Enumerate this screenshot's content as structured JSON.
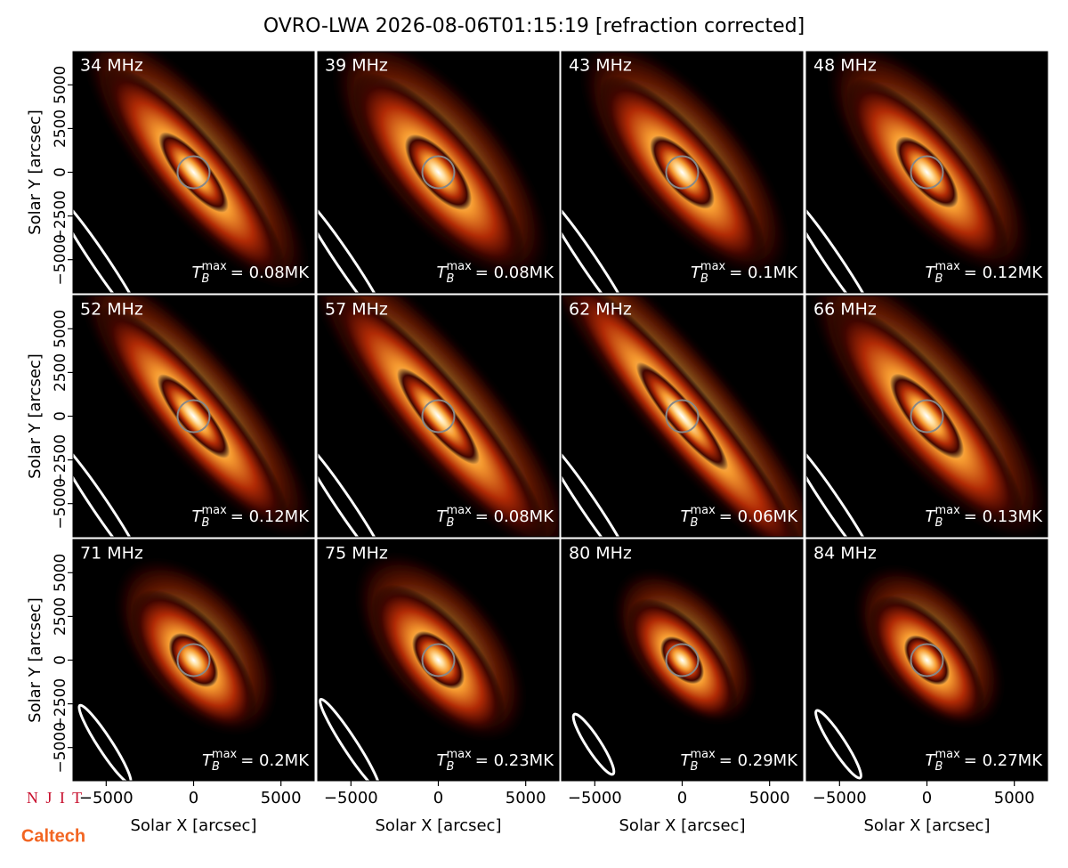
{
  "figure": {
    "title": "OVRO-LWA 2026-08-06T01:15:19 [refraction corrected]",
    "x_label": "Solar X [arcsec]",
    "y_label": "Solar Y [arcsec]",
    "xlim": [
      -6900,
      6900
    ],
    "ylim": [
      -6900,
      6900
    ],
    "xticks": [
      {
        "value": -5000,
        "label": "−5000"
      },
      0,
      5000
    ],
    "yticks": [
      {
        "value": -5000,
        "label": "−5000"
      },
      {
        "value": -2500,
        "label": "−2500"
      },
      0,
      2500,
      5000
    ],
    "tb_symbol": {
      "base": "T",
      "sub": "B",
      "sup": "max"
    },
    "panels": [
      {
        "label": "34 MHz",
        "tb_label": "= 0.08MK"
      },
      {
        "label": "39 MHz",
        "tb_label": "= 0.08MK"
      },
      {
        "label": "43 MHz",
        "tb_label": "= 0.1MK"
      },
      {
        "label": "48 MHz",
        "tb_label": "= 0.12MK"
      },
      {
        "label": "52 MHz",
        "tb_label": "= 0.12MK"
      },
      {
        "label": "57 MHz",
        "tb_label": "= 0.08MK"
      },
      {
        "label": "62 MHz",
        "tb_label": "= 0.06MK"
      },
      {
        "label": "66 MHz",
        "tb_label": "= 0.13MK"
      },
      {
        "label": "71 MHz",
        "tb_label": "= 0.2MK"
      },
      {
        "label": "75 MHz",
        "tb_label": "= 0.23MK"
      },
      {
        "label": "80 MHz",
        "tb_label": "= 0.29MK"
      },
      {
        "label": "84 MHz",
        "tb_label": "= 0.27MK"
      }
    ],
    "logos": [
      "N J I T",
      "Caltech"
    ]
  }
}
